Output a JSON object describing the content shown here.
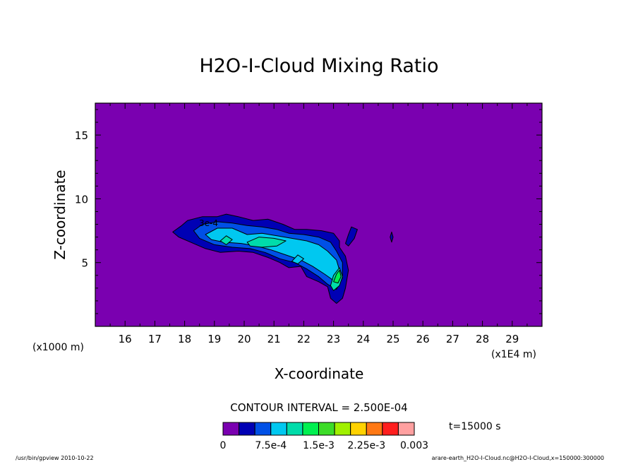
{
  "chart_data": {
    "type": "heatmap",
    "title": "H2O-I-Cloud Mixing Ratio",
    "xlabel": "X-coordinate",
    "ylabel": "Z-coordinate",
    "x_unit_left": "(x1000 m)",
    "x_unit_right": "(x1E4 m)",
    "xlim": [
      15.0,
      30.0
    ],
    "ylim": [
      0,
      17.5
    ],
    "x_ticks": [
      16,
      17,
      18,
      19,
      20,
      21,
      22,
      23,
      24,
      25,
      26,
      27,
      28,
      29
    ],
    "y_ticks": [
      5,
      10,
      15
    ],
    "background_color": "#7a00b0",
    "grid": false,
    "contour_label": "3e-4",
    "contour_interval_label": "CONTOUR INTERVAL = 2.500E-04",
    "time_label": "t=15000 s",
    "colorbar": {
      "colors": [
        "#7a00b0",
        "#0000b4",
        "#0050e6",
        "#00c8f0",
        "#00dcaa",
        "#00f050",
        "#3cdc28",
        "#a0f000",
        "#ffd200",
        "#ff7814",
        "#ff1e1e",
        "#ffa0a0"
      ],
      "tick_labels": [
        "0",
        "7.5e-4",
        "1.5e-3",
        "2.25e-3",
        "0.003"
      ],
      "tick_values": [
        0,
        0.00075,
        0.0015,
        0.00225,
        0.003
      ],
      "range": [
        0,
        0.003
      ]
    },
    "regions": [
      {
        "level": 0.00025,
        "color": "#0000b4",
        "polygon": [
          [
            17.6,
            7.4
          ],
          [
            17.9,
            7.9
          ],
          [
            18.1,
            8.3
          ],
          [
            18.6,
            8.6
          ],
          [
            19.1,
            8.6
          ],
          [
            19.4,
            8.8
          ],
          [
            19.8,
            8.6
          ],
          [
            20.3,
            8.3
          ],
          [
            20.8,
            8.4
          ],
          [
            21.3,
            8.0
          ],
          [
            21.7,
            7.6
          ],
          [
            22.1,
            7.6
          ],
          [
            22.6,
            7.5
          ],
          [
            23.0,
            7.3
          ],
          [
            23.2,
            6.7
          ],
          [
            23.2,
            6.2
          ],
          [
            23.4,
            5.5
          ],
          [
            23.5,
            4.4
          ],
          [
            23.4,
            3.0
          ],
          [
            23.3,
            2.2
          ],
          [
            23.1,
            1.8
          ],
          [
            22.9,
            2.2
          ],
          [
            22.8,
            3.1
          ],
          [
            22.5,
            3.5
          ],
          [
            22.1,
            3.9
          ],
          [
            21.9,
            4.7
          ],
          [
            21.5,
            4.6
          ],
          [
            21.2,
            5.0
          ],
          [
            20.8,
            5.4
          ],
          [
            20.3,
            5.8
          ],
          [
            19.8,
            5.9
          ],
          [
            19.2,
            5.8
          ],
          [
            18.7,
            6.1
          ],
          [
            18.2,
            6.6
          ],
          [
            17.8,
            7.0
          ]
        ]
      },
      {
        "level": 0.00025,
        "color": "#0000b4",
        "polygon": [
          [
            23.4,
            6.5
          ],
          [
            23.5,
            7.2
          ],
          [
            23.6,
            7.8
          ],
          [
            23.8,
            7.6
          ],
          [
            23.7,
            6.9
          ],
          [
            23.5,
            6.3
          ]
        ]
      },
      {
        "level": 0.0005,
        "color": "#0050e6",
        "polygon": [
          [
            18.3,
            7.5
          ],
          [
            18.6,
            8.0
          ],
          [
            19.1,
            8.2
          ],
          [
            19.6,
            8.1
          ],
          [
            20.1,
            7.9
          ],
          [
            20.6,
            7.8
          ],
          [
            21.1,
            7.6
          ],
          [
            21.5,
            7.3
          ],
          [
            22.0,
            7.2
          ],
          [
            22.5,
            7.0
          ],
          [
            22.9,
            6.6
          ],
          [
            23.1,
            5.9
          ],
          [
            23.3,
            5.0
          ],
          [
            23.3,
            3.8
          ],
          [
            23.1,
            2.9
          ],
          [
            22.8,
            3.3
          ],
          [
            22.5,
            3.9
          ],
          [
            22.1,
            4.5
          ],
          [
            21.7,
            5.0
          ],
          [
            21.2,
            5.3
          ],
          [
            20.7,
            5.8
          ],
          [
            20.2,
            6.1
          ],
          [
            19.6,
            6.2
          ],
          [
            19.0,
            6.4
          ],
          [
            18.5,
            6.9
          ]
        ]
      },
      {
        "level": 0.00075,
        "color": "#00c8f0",
        "polygon": [
          [
            18.7,
            7.2
          ],
          [
            19.1,
            7.7
          ],
          [
            19.6,
            7.7
          ],
          [
            20.1,
            7.2
          ],
          [
            20.6,
            7.3
          ],
          [
            21.1,
            7.1
          ],
          [
            21.6,
            6.9
          ],
          [
            22.1,
            6.7
          ],
          [
            22.5,
            6.4
          ],
          [
            22.8,
            5.9
          ],
          [
            23.1,
            5.2
          ],
          [
            23.2,
            4.4
          ],
          [
            23.0,
            3.6
          ],
          [
            22.7,
            4.1
          ],
          [
            22.3,
            4.7
          ],
          [
            21.9,
            5.2
          ],
          [
            21.4,
            5.6
          ],
          [
            20.9,
            6.0
          ],
          [
            20.4,
            6.3
          ],
          [
            19.9,
            6.5
          ],
          [
            19.3,
            6.6
          ],
          [
            18.9,
            6.8
          ]
        ]
      },
      {
        "level": 0.001,
        "color": "#00dcaa",
        "polygon": [
          [
            19.2,
            6.7
          ],
          [
            19.4,
            7.1
          ],
          [
            19.6,
            6.8
          ],
          [
            19.4,
            6.4
          ]
        ]
      },
      {
        "level": 0.001,
        "color": "#00dcaa",
        "polygon": [
          [
            20.1,
            6.6
          ],
          [
            20.5,
            7.0
          ],
          [
            21.0,
            6.9
          ],
          [
            21.4,
            6.7
          ],
          [
            21.1,
            6.3
          ],
          [
            20.6,
            6.2
          ],
          [
            20.2,
            6.3
          ]
        ]
      },
      {
        "level": 0.001,
        "color": "#00dcaa",
        "polygon": [
          [
            22.9,
            3.2
          ],
          [
            23.0,
            4.0
          ],
          [
            23.2,
            4.6
          ],
          [
            23.3,
            3.9
          ],
          [
            23.2,
            3.2
          ],
          [
            23.0,
            2.8
          ]
        ]
      },
      {
        "level": 0.00125,
        "color": "#00f050",
        "polygon": [
          [
            23.0,
            3.5
          ],
          [
            23.1,
            4.1
          ],
          [
            23.2,
            4.4
          ],
          [
            23.25,
            3.9
          ],
          [
            23.15,
            3.4
          ]
        ]
      },
      {
        "level": 0.00075,
        "color": "#00c8f0",
        "polygon": [
          [
            21.6,
            5.1
          ],
          [
            21.8,
            5.6
          ],
          [
            22.0,
            5.3
          ],
          [
            21.8,
            4.9
          ]
        ]
      },
      {
        "level": 0.00025,
        "color": "#0000b4",
        "polygon": [
          [
            24.9,
            7.0
          ],
          [
            24.95,
            7.4
          ],
          [
            25.0,
            7.0
          ],
          [
            24.95,
            6.6
          ]
        ]
      }
    ],
    "footer_left": "/usr/bin/gpview   2010-10-22",
    "footer_right": "arare-earth_H2O-I-Cloud.nc@H2O-I-Cloud,x=150000:300000"
  }
}
